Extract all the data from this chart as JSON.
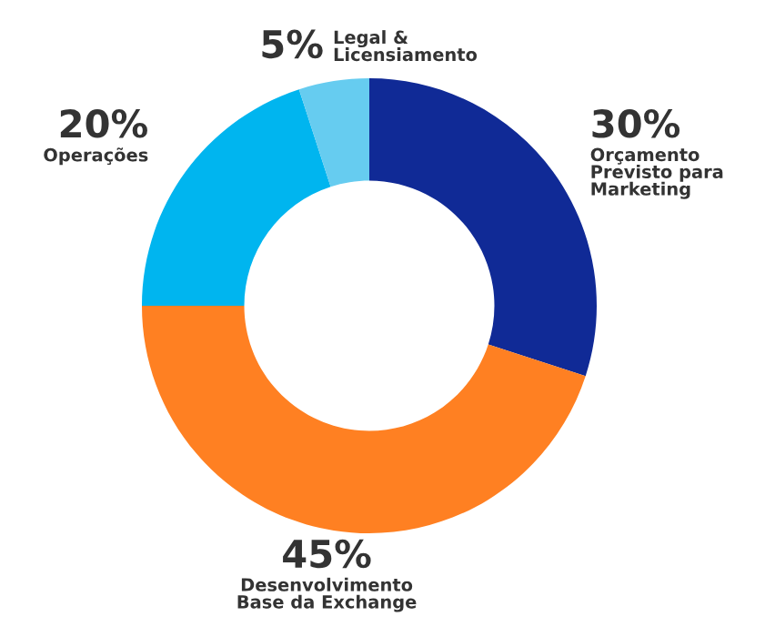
{
  "chart_data": {
    "type": "donut",
    "categories": [
      "Orçamento\nPrevisto para\nMarketing",
      "Desenvolvimento\nBase da Exchange",
      "Operações",
      "Legal &\nLicensiamento"
    ],
    "values": [
      30,
      45,
      20,
      5
    ],
    "value_labels": [
      "30%",
      "45%",
      "20%",
      "5%"
    ],
    "colors": [
      "#102a96",
      "#ff8022",
      "#00b5ef",
      "#66ccf0"
    ]
  }
}
